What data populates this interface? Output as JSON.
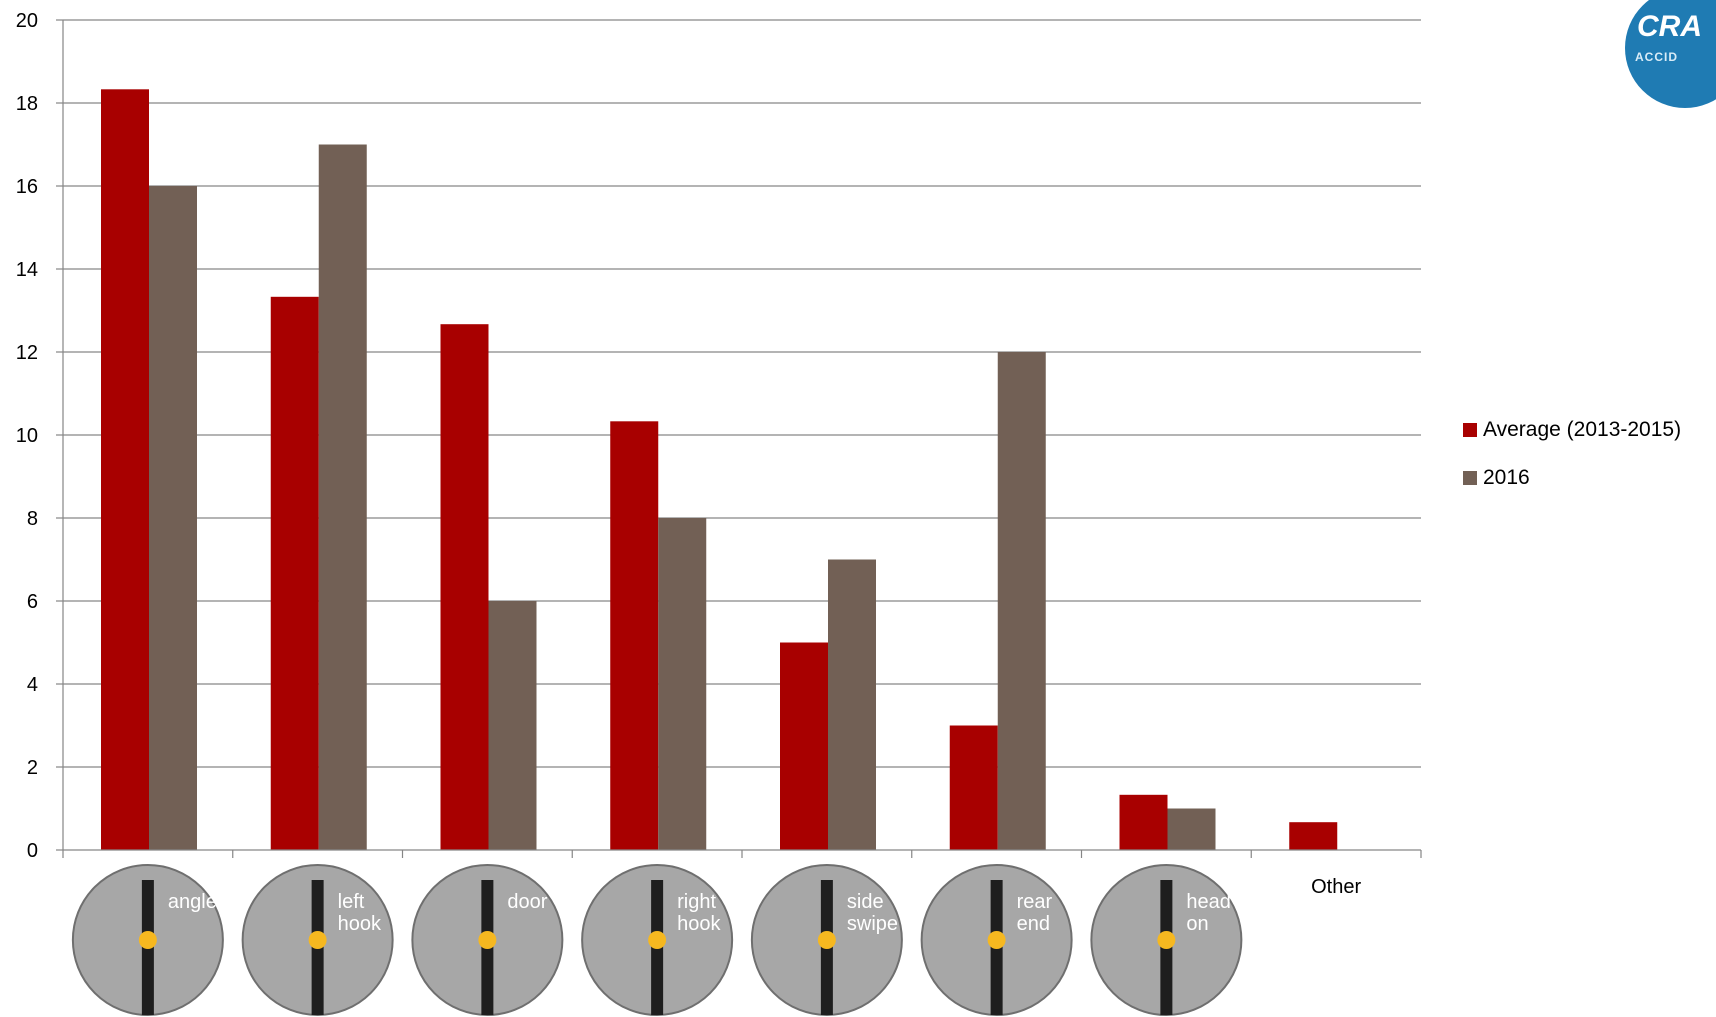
{
  "logo": {
    "text": "CRA",
    "subtext": "ACCID"
  },
  "chart_data": {
    "type": "bar",
    "categories": [
      "angle",
      "left hook",
      "door",
      "right hook",
      "side swipe",
      "rear end",
      "head on",
      "Other"
    ],
    "category_labels_as_icons": [
      true,
      true,
      true,
      true,
      true,
      true,
      true,
      false
    ],
    "ylim": [
      0,
      20
    ],
    "yticks": [
      "0",
      "2",
      "4",
      "6",
      "8",
      "10",
      "12",
      "14",
      "16",
      "18",
      "20"
    ],
    "grid": true,
    "legend_position": "right",
    "series": [
      {
        "name": "Average (2013-2015)",
        "color": "#a80000",
        "values": [
          18.33,
          13.33,
          12.67,
          10.33,
          5,
          3,
          1.33,
          0.67
        ]
      },
      {
        "name": "2016",
        "color": "#726055",
        "values": [
          16,
          17,
          6,
          8,
          7,
          12,
          1,
          0
        ]
      }
    ],
    "icon_text": [
      [
        "angle"
      ],
      [
        "left",
        "hook"
      ],
      [
        "door"
      ],
      [
        "right",
        "hook"
      ],
      [
        "side",
        "swipe"
      ],
      [
        "rear",
        "end"
      ],
      [
        "head",
        "on"
      ],
      []
    ]
  }
}
